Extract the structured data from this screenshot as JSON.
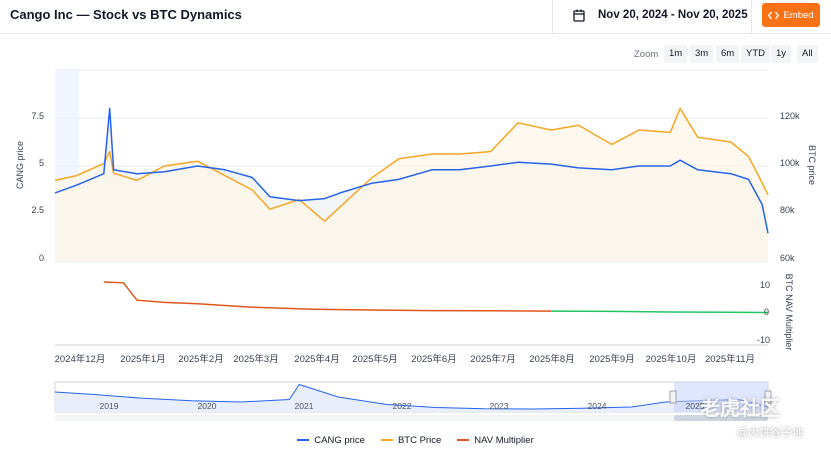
{
  "header": {
    "title": "Cango Inc — Stock vs BTC Dynamics",
    "date_range": "Nov 20, 2024 - Nov 20, 2025",
    "embed_label": "Embed"
  },
  "zoom": {
    "label": "Zoom",
    "buttons": [
      "1m",
      "3m",
      "6m",
      "YTD",
      "1y",
      "All"
    ]
  },
  "legend": [
    {
      "label": "CANG price",
      "color": "#2563eb"
    },
    {
      "label": "BTC Price",
      "color": "#f5a623"
    },
    {
      "label": "NAV Multiplier",
      "color": "#e0561b"
    }
  ],
  "watermark": {
    "main": "老虎社区",
    "sub": "@大饼谷子地"
  },
  "colors": {
    "cang": "#2563eb",
    "btc": "#f5a623",
    "nav": "#e0561b",
    "nav_low": "#22c55e",
    "navigator_band": "#c7d2fe"
  },
  "chart_data": [
    {
      "type": "line",
      "title": "",
      "left_axis": {
        "label": "CANG price",
        "ticks": [
          "0",
          "2.5",
          "5",
          "7.5"
        ],
        "ylim": [
          0,
          10
        ]
      },
      "right_axis": {
        "label": "BTC price",
        "ticks": [
          "60k",
          "80k",
          "100k",
          "120k"
        ],
        "ylim": [
          60000,
          140000
        ]
      },
      "x_ticks": [
        "2024年12月",
        "2025年1月",
        "2025年2月",
        "2025年3月",
        "2025年4月",
        "2025年5月",
        "2025年6月",
        "2025年7月",
        "2025年8月",
        "2025年9月",
        "2025年10月",
        "2025年11月"
      ],
      "x": [
        "2024-11-20",
        "2024-12-01",
        "2024-12-15",
        "2024-12-18",
        "2024-12-20",
        "2025-01-01",
        "2025-01-15",
        "2025-02-01",
        "2025-02-15",
        "2025-03-01",
        "2025-03-10",
        "2025-03-25",
        "2025-04-07",
        "2025-04-15",
        "2025-05-01",
        "2025-05-15",
        "2025-06-01",
        "2025-06-15",
        "2025-07-01",
        "2025-07-15",
        "2025-08-01",
        "2025-08-15",
        "2025-09-01",
        "2025-09-15",
        "2025-10-01",
        "2025-10-06",
        "2025-10-15",
        "2025-11-01",
        "2025-11-10",
        "2025-11-17",
        "2025-11-20"
      ],
      "series": [
        {
          "name": "CANG price",
          "axis": "left",
          "values": [
            3.6,
            4.0,
            4.6,
            8.0,
            4.8,
            4.6,
            4.7,
            5.0,
            4.8,
            4.4,
            3.4,
            3.2,
            3.3,
            3.6,
            4.1,
            4.3,
            4.8,
            4.8,
            5.0,
            5.2,
            5.1,
            4.9,
            4.8,
            5.0,
            5.0,
            5.3,
            4.8,
            4.6,
            4.3,
            3.0,
            1.5
          ]
        },
        {
          "name": "BTC Price",
          "axis": "right",
          "values": [
            94000,
            96000,
            101000,
            106000,
            97000,
            94000,
            100000,
            102000,
            96000,
            90000,
            82000,
            86000,
            77000,
            83000,
            95000,
            103000,
            105000,
            105000,
            106000,
            118000,
            115000,
            117000,
            109000,
            115000,
            114000,
            124000,
            112000,
            110000,
            104000,
            93000,
            88000
          ]
        }
      ]
    },
    {
      "type": "line",
      "title": "",
      "axis": {
        "label": "BTC NAV Multiplier",
        "ticks": [
          "-10",
          "0",
          "10"
        ],
        "ylim": [
          -12,
          13
        ]
      },
      "series": [
        {
          "name": "NAV Multiplier",
          "x": [
            "2024-12-15",
            "2024-12-25",
            "2025-01-01",
            "2025-01-15",
            "2025-02-01",
            "2025-03-01",
            "2025-04-01",
            "2025-05-01",
            "2025-06-01",
            "2025-07-01",
            "2025-08-01",
            "2025-09-01",
            "2025-10-01",
            "2025-11-01",
            "2025-11-20"
          ],
          "values": [
            10.5,
            10.2,
            4.0,
            3.2,
            2.7,
            1.5,
            0.8,
            0.5,
            0.3,
            0.2,
            0.1,
            0.0,
            -0.2,
            -0.3,
            -0.4
          ]
        }
      ]
    },
    {
      "type": "area",
      "title": "",
      "x_ticks": [
        "2019",
        "2020",
        "2021",
        "2022",
        "2023",
        "2024",
        "2025"
      ],
      "series": [
        {
          "name": "CANG price",
          "x": [
            2018.6,
            2019.0,
            2019.5,
            2020.0,
            2020.5,
            2021.0,
            2021.1,
            2021.5,
            2022.0,
            2022.5,
            2023.0,
            2023.5,
            2024.0,
            2024.5,
            2024.85,
            2025.2,
            2025.6,
            2025.9
          ],
          "values": [
            8,
            7,
            5.5,
            4.5,
            4,
            5,
            11,
            6,
            3,
            1.8,
            1.3,
            1.2,
            1.5,
            2,
            4,
            4.5,
            5,
            2
          ]
        }
      ]
    }
  ]
}
